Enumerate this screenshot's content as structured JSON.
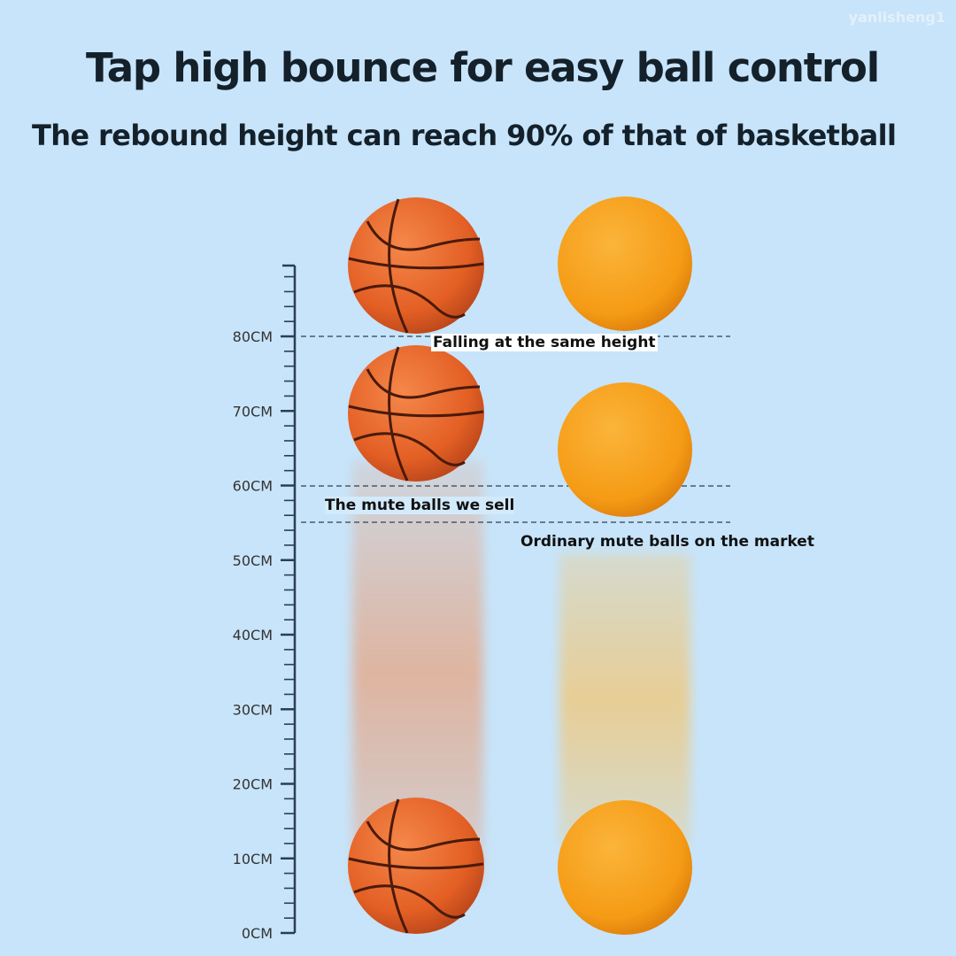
{
  "watermark": "yanlisheng1",
  "title": "Tap high bounce for easy ball control",
  "subtitle": "The rebound height can reach 90% of that of basketball",
  "ruler": {
    "unit": "CM",
    "labels": [
      "0CM",
      "10CM",
      "20CM",
      "30CM",
      "40CM",
      "50CM",
      "60CM",
      "70CM",
      "80CM"
    ]
  },
  "annotations": {
    "falling": "Falling at the same height",
    "ours": "The mute balls we sell",
    "ordinary": "Ordinary mute balls on the market"
  },
  "colors": {
    "background": "#c7e4fa",
    "basketball": "#e8672a",
    "orange_ball": "#f7a21c"
  }
}
